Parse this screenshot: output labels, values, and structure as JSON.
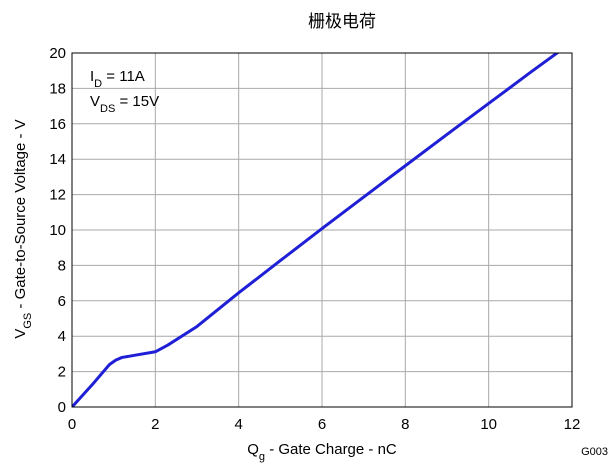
{
  "chart_data": {
    "type": "line",
    "title": "栅极电荷",
    "xlabel": {
      "main": "Q",
      "sub": "g",
      "rest": " - Gate Charge - nC"
    },
    "ylabel": {
      "main": "V",
      "sub": "GS",
      "rest": " - Gate-to-Source Voltage - V"
    },
    "xlim": [
      0,
      12
    ],
    "ylim": [
      0,
      20
    ],
    "x_ticks": [
      0,
      2,
      4,
      6,
      8,
      10,
      12
    ],
    "y_ticks": [
      0,
      2,
      4,
      6,
      8,
      10,
      12,
      14,
      16,
      18,
      20
    ],
    "grid": true,
    "annotations": [
      {
        "main": "I",
        "sub": "D",
        "rest": " = 11A"
      },
      {
        "main": "V",
        "sub": "DS",
        "rest": " = 15V"
      }
    ],
    "figure_code": "G003",
    "series": [
      {
        "color": "#1f1fd6",
        "x": [
          0,
          0.5,
          0.9,
          1.05,
          1.2,
          1.5,
          2.0,
          2.3,
          3,
          4,
          5,
          6,
          7,
          8,
          9,
          10,
          11,
          11.7
        ],
        "y": [
          0,
          1.3,
          2.4,
          2.65,
          2.8,
          2.92,
          3.12,
          3.5,
          4.55,
          6.45,
          8.27,
          10.08,
          11.86,
          13.63,
          15.4,
          17.15,
          18.9,
          20.1
        ]
      }
    ]
  }
}
